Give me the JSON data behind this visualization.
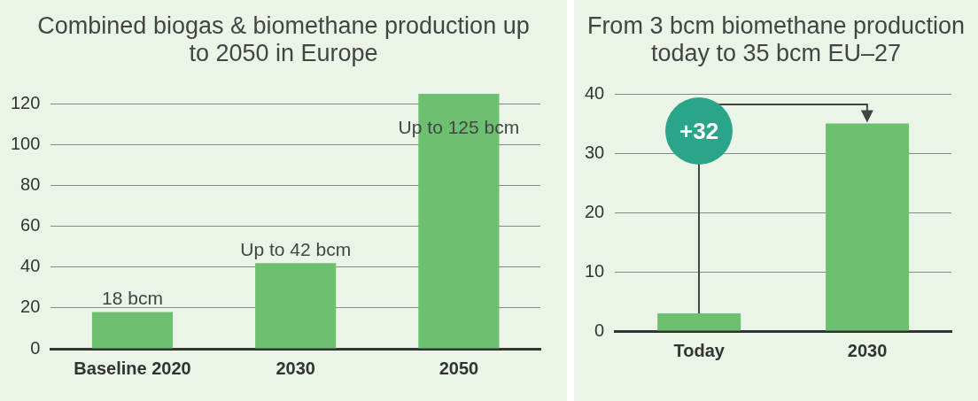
{
  "chart_data": [
    {
      "type": "bar",
      "title": "Combined biogas & biomethane production up to 2050 in Europe",
      "categories": [
        "Baseline 2020",
        "2030",
        "2050"
      ],
      "values": [
        18,
        42,
        125
      ],
      "value_labels": [
        "18 bcm",
        "Up to 42 bcm",
        "Up to 125 bcm"
      ],
      "color": "#6cc070",
      "ylim": [
        0,
        125
      ],
      "yticks": [
        0,
        20,
        40,
        60,
        80,
        100,
        120
      ],
      "grid": "y"
    },
    {
      "type": "bar",
      "title": "From 3 bcm biomethane production today to 35 bcm EU–27",
      "categories": [
        "Today",
        "2030"
      ],
      "values": [
        3,
        35
      ],
      "color": "#6cc070",
      "ylim": [
        0,
        40
      ],
      "yticks": [
        0,
        10,
        20,
        30,
        40
      ],
      "grid": "y",
      "annotations": [
        "+32"
      ]
    }
  ]
}
